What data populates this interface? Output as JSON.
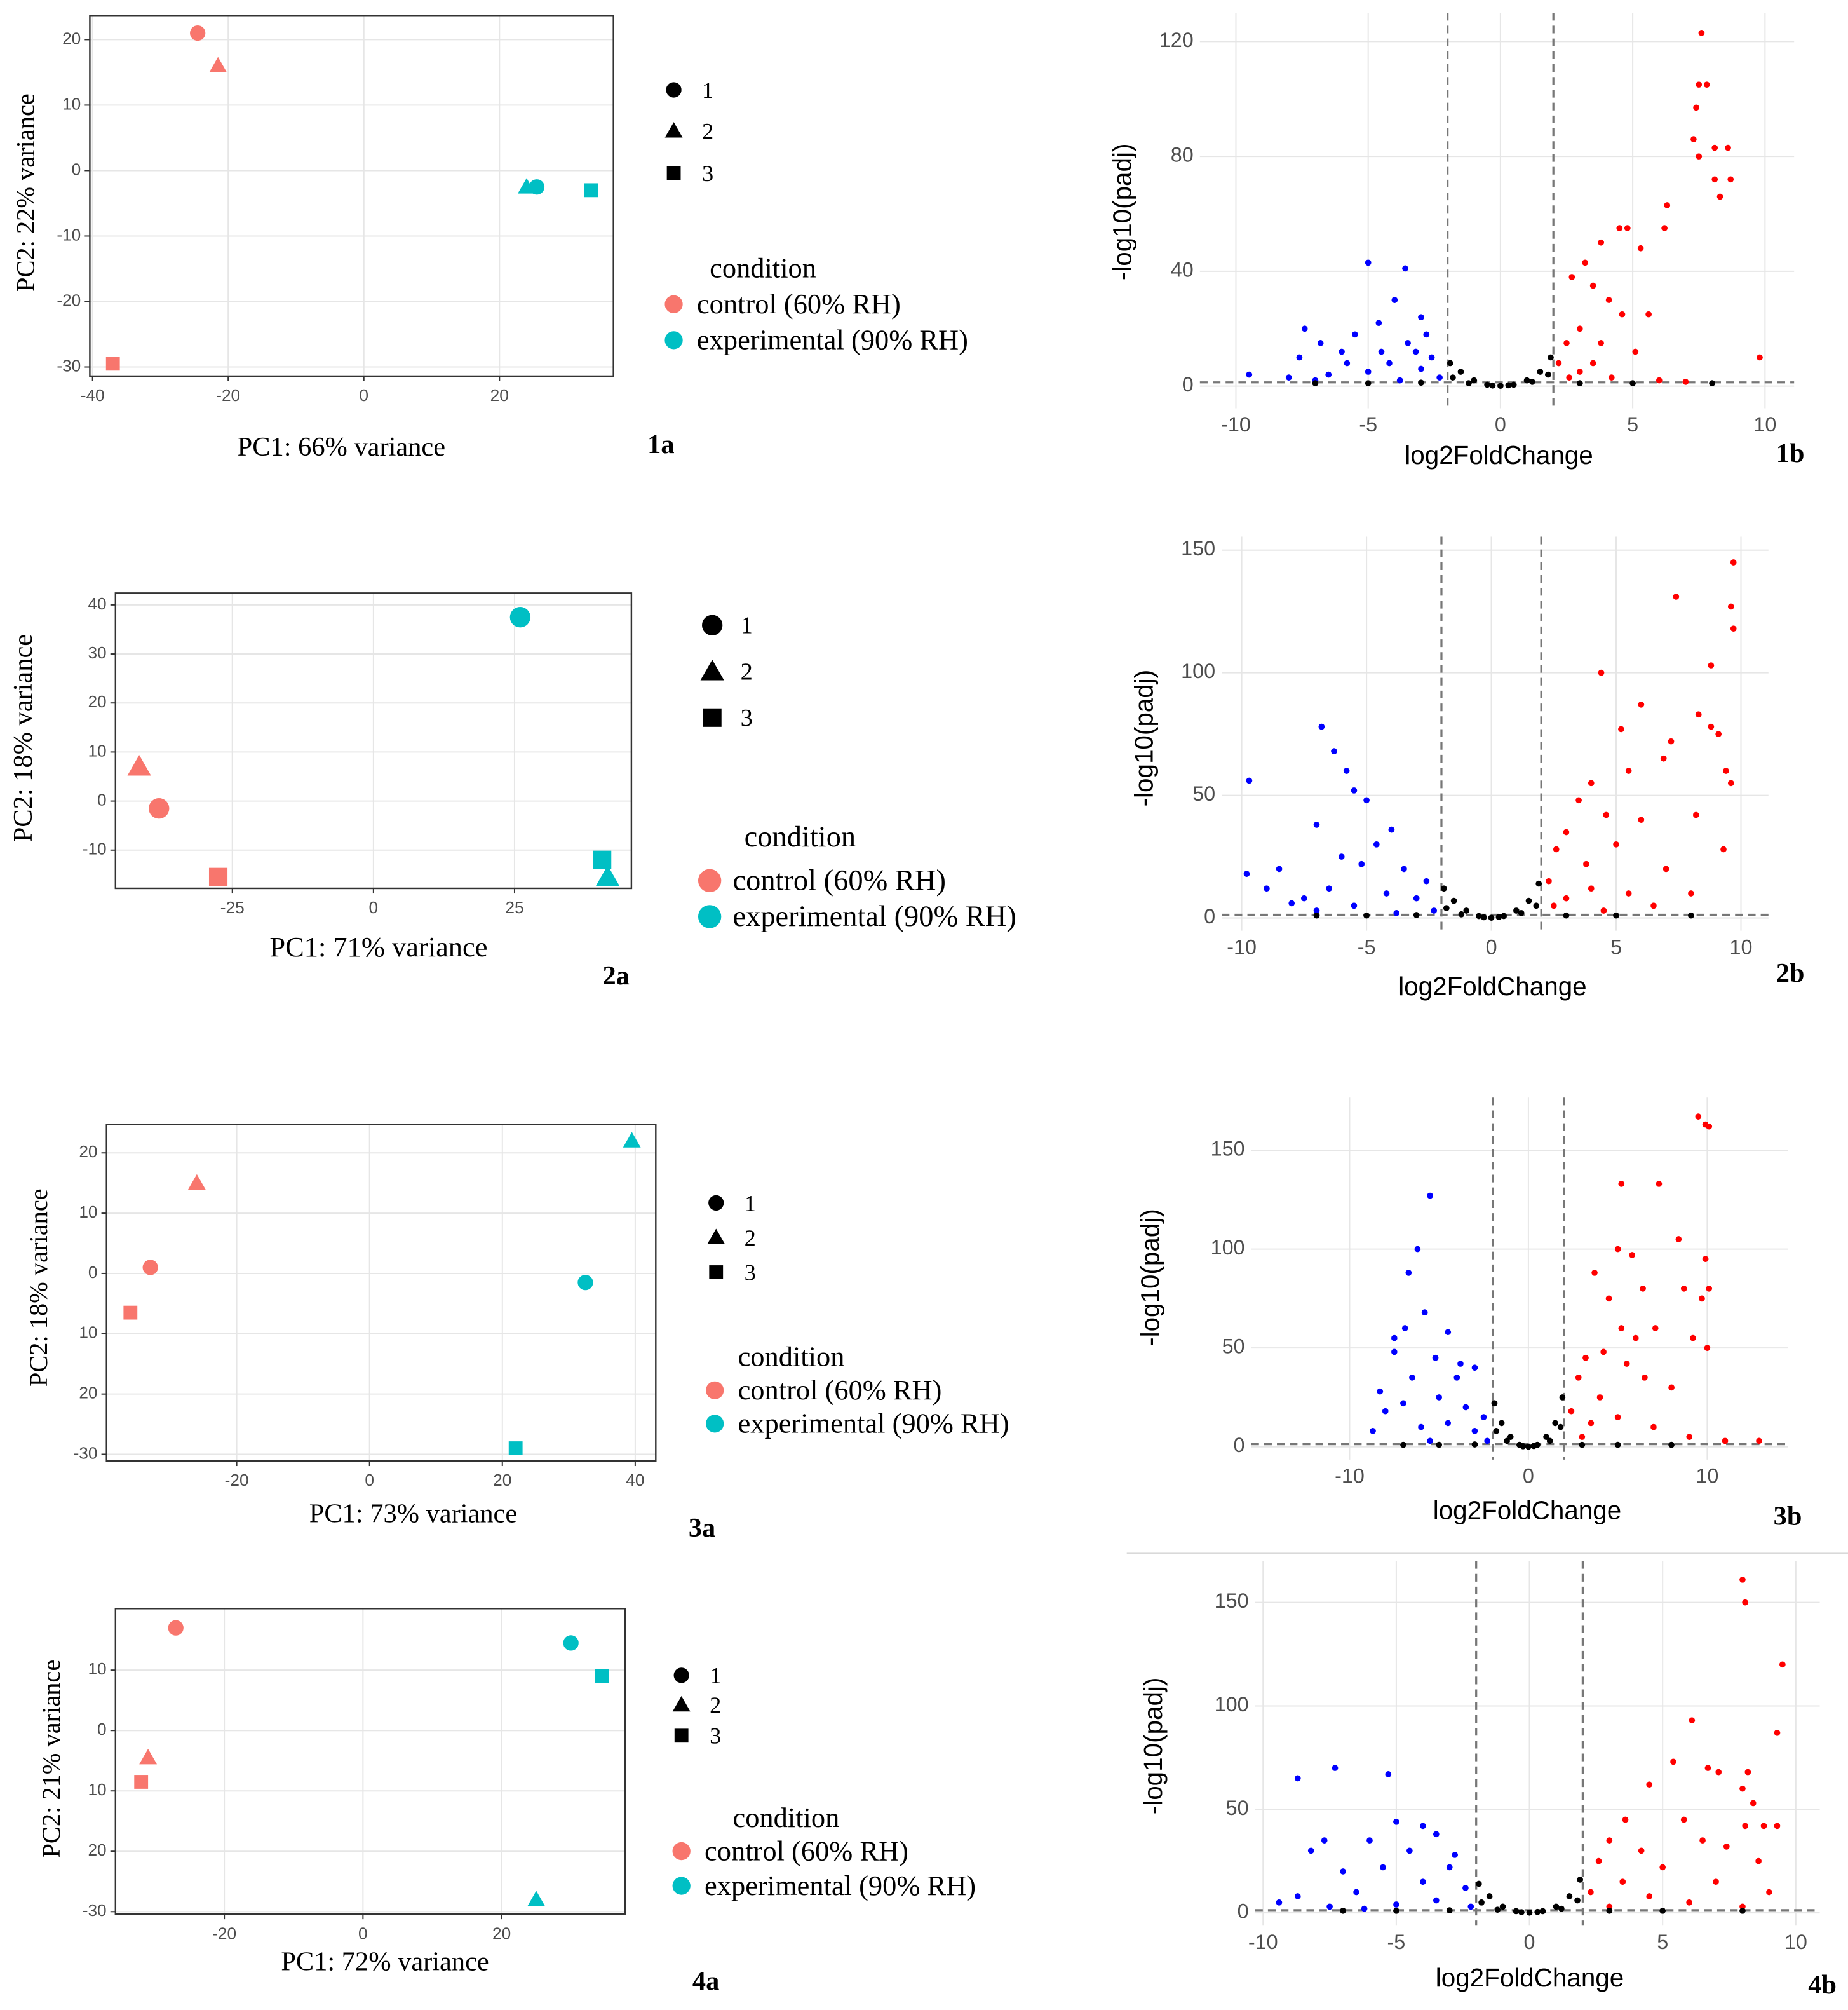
{
  "chart_data": [
    {
      "type": "scatter",
      "panel_label": "1a",
      "xlabel": "PC1: 66% variance",
      "ylabel": "PC2: 22% variance",
      "xlim": [
        -40.4,
        36.8
      ],
      "ylim": [
        -31.4,
        23.7
      ],
      "xticks": [
        -40,
        -20,
        0,
        20
      ],
      "yticks": [
        -30,
        -20,
        -10,
        0,
        10,
        20
      ],
      "grid": true,
      "shape_legend": {
        "labels": [
          "1",
          "2",
          "3"
        ],
        "markers": [
          "circle",
          "triangle",
          "square"
        ]
      },
      "legend_title": "condition",
      "series": [
        {
          "name": "control (60% RH)",
          "color": "#F8766D",
          "x": [
            -24.5,
            -21.5,
            -37
          ],
          "values": [
            21,
            16,
            -29.5
          ]
        },
        {
          "name": "experimental (90% RH)",
          "color": "#00BFC4",
          "x": [
            25.5,
            24,
            33.5
          ],
          "values": [
            -2.5,
            -2.5,
            -3
          ]
        }
      ]
    },
    {
      "type": "volcano",
      "panel_label": "1b",
      "xlabel": "log2FoldChange",
      "ylabel": "-log10(padj)",
      "xlim": [
        -11.36,
        11.1
      ],
      "ylim": [
        -7.7,
        130
      ],
      "xticks": [
        -10,
        -5,
        0,
        5,
        10
      ],
      "yticks": [
        0,
        40,
        80,
        120
      ],
      "grid": true,
      "vlines": [
        -2,
        2
      ],
      "hline": 1.3,
      "series": [
        {
          "color": "#0000FF",
          "x": [
            -5,
            -3.6,
            -4,
            -3,
            -4.6,
            -5.5,
            -7.4,
            -6.8,
            -7.6,
            -6,
            -3.5,
            -2.6,
            -3,
            -4.2,
            -5,
            -6.5,
            -8,
            -9.5,
            -2.3,
            -3.8,
            -4.5,
            -5.8,
            -2.8,
            -3.2,
            -7
          ],
          "values": [
            43,
            41,
            30,
            24,
            22,
            18,
            20,
            15,
            10,
            12,
            15,
            10,
            6,
            8,
            5,
            4,
            3,
            4,
            3,
            2,
            12,
            8,
            18,
            12,
            2
          ]
        },
        {
          "color": "#FF0000",
          "x": [
            7.6,
            7.5,
            7.8,
            7.4,
            7.3,
            7.5,
            8.1,
            8.6,
            8.1,
            8.3,
            8.7,
            9.8,
            6.3,
            6.2,
            4.5,
            4.8,
            5.3,
            3.8,
            3.2,
            2.7,
            3.5,
            4.1,
            5.6,
            4.6,
            3,
            2.5,
            3.8,
            5.1,
            2.2,
            3,
            4.2,
            6,
            7,
            2.6,
            3.5
          ],
          "values": [
            123,
            105,
            105,
            97,
            86,
            80,
            83,
            83,
            72,
            66,
            72,
            10,
            63,
            55,
            55,
            55,
            48,
            50,
            43,
            38,
            35,
            30,
            25,
            25,
            20,
            15,
            15,
            12,
            8,
            5,
            3,
            2,
            1.5,
            3,
            8
          ]
        },
        {
          "color": "#000000",
          "x": [
            -1.9,
            -1.5,
            -1,
            -0.5,
            0,
            0.5,
            1,
            1.5,
            1.9,
            -1.8,
            1.8,
            -1.2,
            1.2,
            -0.3,
            0.3,
            5,
            -5,
            8,
            -7,
            3,
            -3
          ],
          "values": [
            8,
            5,
            2,
            0.5,
            0.1,
            0.5,
            2,
            5,
            10,
            3,
            4,
            1,
            1.5,
            0.2,
            0.3,
            1,
            1,
            1,
            1,
            1,
            1.2
          ]
        }
      ]
    },
    {
      "type": "scatter",
      "panel_label": "2a",
      "xlabel": "PC1: 71% variance",
      "ylabel": "PC2: 18% variance",
      "xlim": [
        -45.7,
        45.7
      ],
      "ylim": [
        -17.8,
        42.4
      ],
      "xticks": [
        -25,
        0,
        25
      ],
      "yticks": [
        -10,
        0,
        10,
        20,
        30,
        40
      ],
      "grid": true,
      "shape_legend": {
        "labels": [
          "1",
          "2",
          "3"
        ],
        "markers": [
          "circle",
          "triangle",
          "square"
        ]
      },
      "legend_title": "condition",
      "series": [
        {
          "name": "control (60% RH)",
          "color": "#F8766D",
          "x": [
            -38,
            -41.5,
            -27.5
          ],
          "values": [
            -1.5,
            7,
            -15.5
          ]
        },
        {
          "name": "experimental (90% RH)",
          "color": "#00BFC4",
          "x": [
            26,
            41.5,
            40.5
          ],
          "values": [
            37.5,
            -15.5,
            -12
          ]
        }
      ]
    },
    {
      "type": "volcano",
      "panel_label": "2b",
      "xlabel": "log2FoldChange",
      "ylabel": "-log10(padj)",
      "xlim": [
        -10.8,
        11.1
      ],
      "ylim": [
        -5.2,
        155.5
      ],
      "xticks": [
        -10,
        -5,
        0,
        5,
        10
      ],
      "yticks": [
        0,
        50,
        100,
        150
      ],
      "grid": true,
      "vlines": [
        -2,
        2
      ],
      "hline": 1.3,
      "series": [
        {
          "color": "#0000FF",
          "x": [
            -6.8,
            -6.3,
            -5.8,
            -5.5,
            -5,
            -9.7,
            -7,
            -4,
            -4.6,
            -5.2,
            -6,
            -8.5,
            -9.8,
            -9,
            -7.5,
            -6.5,
            -3.5,
            -2.6,
            -3,
            -4.2,
            -5.5,
            -7,
            -8,
            -2.3,
            -3.8
          ],
          "values": [
            78,
            68,
            60,
            52,
            48,
            56,
            38,
            36,
            30,
            22,
            25,
            20,
            18,
            12,
            8,
            12,
            20,
            15,
            8,
            10,
            5,
            3,
            6,
            3,
            2
          ]
        },
        {
          "color": "#FF0000",
          "x": [
            9.7,
            9.6,
            9.7,
            7.4,
            8.8,
            6,
            4.4,
            8.3,
            8.8,
            9.1,
            9.4,
            9.6,
            7.2,
            5.2,
            6.9,
            8.2,
            9.3,
            5.5,
            4,
            3.5,
            4.6,
            3,
            6,
            2.6,
            5,
            3.8,
            7,
            2.3,
            4,
            5.5,
            3,
            8,
            6.5,
            2.5,
            4.5
          ],
          "values": [
            145,
            127,
            118,
            131,
            103,
            87,
            100,
            83,
            78,
            75,
            60,
            55,
            72,
            77,
            65,
            42,
            28,
            60,
            55,
            48,
            42,
            35,
            40,
            28,
            30,
            22,
            20,
            15,
            12,
            10,
            8,
            10,
            5,
            5,
            3
          ]
        },
        {
          "color": "#000000",
          "x": [
            -1.9,
            -1.5,
            -1,
            -0.5,
            0,
            0.5,
            1,
            1.5,
            1.9,
            -1.8,
            1.8,
            -1.2,
            1.2,
            -0.3,
            0.3,
            5,
            -5,
            8,
            -7,
            3,
            -3
          ],
          "values": [
            12,
            7,
            3,
            0.8,
            0.1,
            0.8,
            3,
            7,
            14,
            4,
            5,
            1.5,
            2,
            0.3,
            0.4,
            1,
            1,
            1,
            1,
            1,
            1.2
          ]
        }
      ]
    },
    {
      "type": "scatter",
      "panel_label": "3a",
      "xlabel": "PC1: 73% variance",
      "ylabel": "PC2: 18% variance",
      "xlim": [
        -39.6,
        43.1
      ],
      "ylim": [
        -31.1,
        24.7
      ],
      "xticks": [
        -20,
        0,
        20,
        40
      ],
      "yticks": [
        -30,
        {
          "value": -20,
          "label": "20"
        },
        {
          "value": -10,
          "label": "10"
        },
        0,
        10,
        20
      ],
      "grid": true,
      "shape_legend": {
        "labels": [
          "1",
          "2",
          "3"
        ],
        "markers": [
          "circle",
          "triangle",
          "square"
        ]
      },
      "legend_title": "condition",
      "series": [
        {
          "name": "control (60% RH)",
          "color": "#F8766D",
          "x": [
            -33,
            -26,
            -36
          ],
          "values": [
            1,
            15,
            -6.5
          ]
        },
        {
          "name": "experimental (90% RH)",
          "color": "#00BFC4",
          "x": [
            32.5,
            39.5,
            22
          ],
          "values": [
            -1.5,
            22,
            -29
          ]
        }
      ]
    },
    {
      "type": "volcano",
      "panel_label": "3b",
      "xlabel": "log2FoldChange",
      "ylabel": "-log10(padj)",
      "xlim": [
        -15.5,
        14.5
      ],
      "ylim": [
        -6.5,
        176.6
      ],
      "xticks": [
        -10,
        0,
        10
      ],
      "yticks": [
        0,
        50,
        100,
        150
      ],
      "grid": true,
      "vlines": [
        -2,
        2
      ],
      "hline": 1.3,
      "series": [
        {
          "color": "#0000FF",
          "x": [
            -5.5,
            -6.2,
            -6.7,
            -5.8,
            -6.9,
            -7.5,
            -4.5,
            -7.5,
            -5.2,
            -3.8,
            -4,
            -3,
            -6.5,
            -8.3,
            -8,
            -7,
            -5,
            -3.5,
            -2.5,
            -4.5,
            -3,
            -6,
            -8.7,
            -2.3,
            -5.5
          ],
          "values": [
            127,
            100,
            88,
            68,
            60,
            55,
            58,
            48,
            45,
            42,
            35,
            40,
            35,
            28,
            18,
            22,
            25,
            20,
            15,
            12,
            8,
            10,
            8,
            3,
            3
          ]
        },
        {
          "color": "#FF0000",
          "x": [
            9.5,
            9.9,
            10.1,
            5.2,
            7.3,
            9.9,
            10.1,
            8.4,
            5,
            5.8,
            8.7,
            9.7,
            6.4,
            3.7,
            4.5,
            7.1,
            10,
            6,
            9.2,
            5.2,
            3.2,
            4.2,
            5.5,
            2.8,
            6.5,
            4,
            8,
            2.4,
            3.5,
            5,
            7,
            11,
            12.9,
            9,
            3
          ],
          "values": [
            167,
            163,
            162,
            133,
            133,
            95,
            80,
            105,
            100,
            97,
            80,
            75,
            80,
            88,
            75,
            60,
            50,
            55,
            55,
            60,
            45,
            48,
            42,
            35,
            35,
            25,
            30,
            18,
            12,
            15,
            10,
            3,
            3,
            5,
            5
          ]
        },
        {
          "color": "#000000",
          "x": [
            -1.9,
            -1.5,
            -1,
            -0.5,
            0,
            0.5,
            1,
            1.5,
            1.9,
            -1.8,
            1.8,
            -1.2,
            1.2,
            -0.3,
            0.3,
            5,
            -5,
            8,
            -7,
            3,
            -3
          ],
          "values": [
            22,
            12,
            5,
            1,
            0.1,
            1,
            5,
            12,
            25,
            8,
            10,
            3,
            3,
            0.3,
            0.4,
            1,
            1,
            1,
            1,
            1,
            1.2
          ]
        }
      ]
    },
    {
      "type": "scatter",
      "panel_label": "4a",
      "xlabel": "PC1: 72% variance",
      "ylabel": "PC2: 21% variance",
      "xlim": [
        -35.7,
        37.8
      ],
      "ylim": [
        -30.4,
        20.2
      ],
      "xticks": [
        -20,
        0,
        20
      ],
      "yticks": [
        -30,
        {
          "value": -20,
          "label": "20"
        },
        {
          "value": -10,
          "label": "10"
        },
        0,
        10
      ],
      "grid": true,
      "shape_legend": {
        "labels": [
          "1",
          "2",
          "3"
        ],
        "markers": [
          "circle",
          "triangle",
          "square"
        ]
      },
      "legend_title": "condition",
      "series": [
        {
          "name": "control (60% RH)",
          "color": "#F8766D",
          "x": [
            -27,
            -31,
            -32
          ],
          "values": [
            17,
            -4.5,
            -8.5
          ]
        },
        {
          "name": "experimental (90% RH)",
          "color": "#00BFC4",
          "x": [
            30,
            25,
            34.5
          ],
          "values": [
            14.5,
            -28,
            9
          ]
        }
      ]
    },
    {
      "type": "volcano",
      "panel_label": "4b",
      "xlabel": "log2FoldChange",
      "ylabel": "-log10(padj)",
      "xlim": [
        -10.3,
        10.9
      ],
      "ylim": [
        -6.2,
        170
      ],
      "xticks": [
        -10,
        -5,
        0,
        5,
        10
      ],
      "yticks": [
        0,
        50,
        100,
        150
      ],
      "grid": true,
      "vlines": [
        -2,
        2
      ],
      "hline": 1.3,
      "series": [
        {
          "color": "#0000FF",
          "x": [
            -7.3,
            -8.7,
            -5.3,
            -7.7,
            -5,
            -4,
            -3.5,
            -6,
            -8.2,
            -4.5,
            -2.8,
            -3,
            -5.5,
            -7,
            -8.7,
            -9.4,
            -6.5,
            -4,
            -2.4,
            -3.5,
            -5,
            -6.2,
            -2.2,
            -7.5
          ],
          "values": [
            70,
            65,
            67,
            35,
            44,
            42,
            38,
            35,
            30,
            30,
            28,
            22,
            22,
            20,
            8,
            5,
            10,
            15,
            12,
            6,
            4,
            2,
            3,
            3
          ]
        },
        {
          "color": "#FF0000",
          "x": [
            8,
            8.1,
            9.5,
            9.3,
            6.1,
            6.7,
            5.4,
            7.1,
            8.2,
            8,
            8.4,
            8.1,
            8.8,
            9.3,
            4.5,
            3.6,
            5.8,
            6.5,
            7.4,
            3,
            4.2,
            2.6,
            5,
            8.6,
            7,
            3.5,
            2.3,
            4.5,
            6,
            9,
            3,
            8
          ],
          "values": [
            161,
            150,
            120,
            87,
            93,
            70,
            73,
            68,
            68,
            60,
            53,
            42,
            42,
            42,
            62,
            45,
            45,
            35,
            32,
            35,
            30,
            25,
            22,
            25,
            15,
            15,
            10,
            8,
            5,
            10,
            3,
            3
          ]
        },
        {
          "color": "#000000",
          "x": [
            -1.9,
            -1.5,
            -1,
            -0.5,
            0,
            0.5,
            1,
            1.5,
            1.9,
            -1.8,
            1.8,
            -1.2,
            1.2,
            -0.3,
            0.3,
            5,
            -5,
            8,
            -7,
            3,
            -3
          ],
          "values": [
            14,
            8,
            3,
            0.8,
            0.1,
            0.8,
            3,
            8,
            16,
            5,
            6,
            1.5,
            2,
            0.3,
            0.4,
            1,
            1,
            1,
            1,
            1,
            1.2
          ]
        }
      ]
    }
  ]
}
